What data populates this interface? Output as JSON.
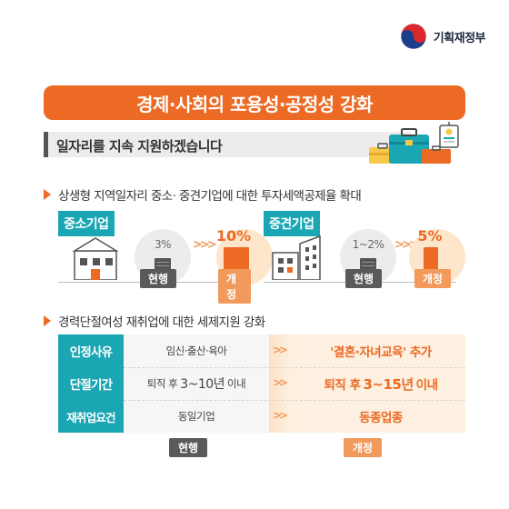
{
  "logo": {
    "text": "기획재정부",
    "colors": {
      "red": "#d9272e",
      "blue": "#1c3f8c"
    }
  },
  "title": "경제·사회의 포용성·공정성 강화",
  "subtitle": "일자리를 지속 지원하겠습니다",
  "section1": {
    "heading": "상생형 지역일자리 중소· 중견기업에 대한 투자세액공제율 확대",
    "groups": [
      {
        "label": "중소기업",
        "current_rate": "3%",
        "new_rate": "10%",
        "current_tag": "현행",
        "new_tag": "개정"
      },
      {
        "label": "중견기업",
        "current_rate": "1~2%",
        "new_rate": "5%",
        "current_tag": "현행",
        "new_tag": "개정"
      }
    ]
  },
  "section2": {
    "heading": "경력단절여성 재취업에 대한 세제지원 강화",
    "rows": [
      {
        "label": "인정사유",
        "current": "임신·출산·육아",
        "new": "'결혼·자녀교육' 추가"
      },
      {
        "label": "단절기간",
        "current_pre": "퇴직 후",
        "current_num": "3~10년",
        "current_post": "이내",
        "new_pre": "퇴직 후",
        "new_num": "3~15년",
        "new_post": "이내"
      },
      {
        "label": "재취업요건",
        "current": "동일기업",
        "new": "동종업종"
      }
    ],
    "current_tag": "현행",
    "new_tag": "개정"
  },
  "colors": {
    "accent": "#ec6a24",
    "teal": "#1aa6b3",
    "peach": "#fde6cc",
    "gray_tag": "#5a5a5a"
  }
}
